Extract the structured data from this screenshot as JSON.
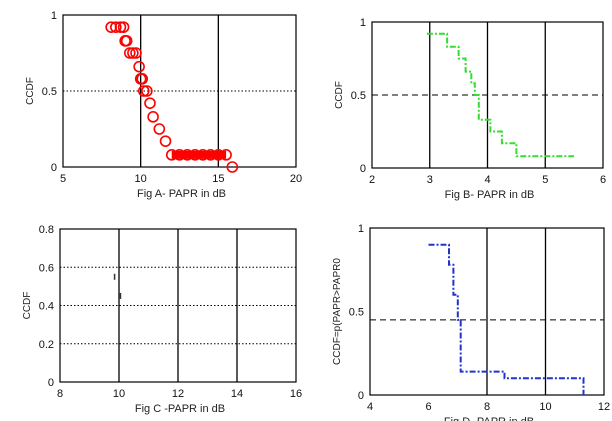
{
  "chart_data": [
    {
      "id": "A",
      "type": "line",
      "xlabel": "Fig A-  PAPR  in dB",
      "ylabel": "CCDF",
      "xlim": [
        5,
        20
      ],
      "ylim": [
        0,
        1
      ],
      "xticks": [
        "5",
        "10",
        "15",
        "20"
      ],
      "yticks": [
        "0",
        "0.5",
        "1"
      ],
      "xtick_values": [
        5,
        10,
        15,
        20
      ],
      "ytick_values": [
        0,
        0.5,
        1
      ],
      "dashed_ref_y": 0.5,
      "dashed_style": "dotted",
      "grid_x": [
        10,
        15
      ],
      "series": [
        {
          "color": "#ff0000",
          "marker": "circle",
          "x": [
            8.1,
            8.4,
            8.7,
            9.1,
            9.3,
            9.5,
            9.7,
            10.0,
            10.2,
            10.4,
            10.6,
            10.8,
            11.2,
            11.6,
            12,
            12.5,
            13,
            13.5,
            14,
            14.5,
            15,
            15.5,
            15.9,
            8.9,
            9.0,
            9.9,
            10.1
          ],
          "y": [
            0.92,
            0.92,
            0.92,
            0.83,
            0.75,
            0.75,
            0.75,
            0.58,
            0.5,
            0.5,
            0.42,
            0.33,
            0.25,
            0.17,
            0.08,
            0.08,
            0.08,
            0.08,
            0.08,
            0.08,
            0.08,
            0.08,
            0.0,
            0.92,
            0.83,
            0.66,
            0.58
          ]
        }
      ]
    },
    {
      "id": "B",
      "type": "line",
      "xlabel": "Fig B-  PAPR  in dB",
      "ylabel": "CCDF",
      "xlim": [
        2,
        6
      ],
      "ylim": [
        0,
        1
      ],
      "xticks": [
        "2",
        "3",
        "4",
        "5",
        "6"
      ],
      "yticks": [
        "0",
        "0.5",
        "1"
      ],
      "xtick_values": [
        2,
        3,
        4,
        5,
        6
      ],
      "ytick_values": [
        0,
        0.5,
        1
      ],
      "dashed_ref_y": 0.5,
      "dashed_style": "dashed",
      "grid_x": [
        3,
        4,
        5
      ],
      "series": [
        {
          "color": "#33dd33",
          "line": "dash-dot",
          "x": [
            2.95,
            3.3,
            3.3,
            3.5,
            3.5,
            3.62,
            3.62,
            3.72,
            3.72,
            3.78,
            3.78,
            3.85,
            3.85,
            4.05,
            4.05,
            4.25,
            4.25,
            4.5,
            4.5,
            5.5
          ],
          "y": [
            0.92,
            0.92,
            0.83,
            0.83,
            0.75,
            0.75,
            0.66,
            0.66,
            0.58,
            0.58,
            0.5,
            0.5,
            0.33,
            0.33,
            0.25,
            0.25,
            0.17,
            0.17,
            0.08,
            0.08
          ]
        }
      ]
    },
    {
      "id": "C",
      "type": "scatter",
      "xlabel": "Fig C -PAPR  in dB",
      "ylabel": "CCDF",
      "xlim": [
        8,
        16
      ],
      "ylim": [
        0,
        0.8
      ],
      "xticks": [
        "8",
        "10",
        "12",
        "14",
        "16"
      ],
      "yticks": [
        "0",
        "0.2",
        "0.4",
        "0.6",
        "0.8"
      ],
      "xtick_values": [
        8,
        10,
        12,
        14,
        16
      ],
      "ytick_values": [
        0,
        0.2,
        0.4,
        0.6,
        0.8
      ],
      "dotted_ref_y": [
        0.2,
        0.4,
        0.6
      ],
      "grid_x": [
        10,
        12,
        14
      ],
      "series": [
        {
          "color": "#333333",
          "marker": "tick",
          "x": [
            9.85,
            10.05
          ],
          "y": [
            0.55,
            0.45
          ]
        }
      ]
    },
    {
      "id": "D",
      "type": "line",
      "xlabel": "Fig D -PAPR  in dB",
      "ylabel": "CCDF=p(PAPR>PAPR0",
      "xlim": [
        4,
        12
      ],
      "ylim": [
        0,
        1
      ],
      "xticks": [
        "4",
        "6",
        "8",
        "10",
        "12"
      ],
      "yticks": [
        "0",
        "0.5",
        "1"
      ],
      "xtick_values": [
        4,
        6,
        8,
        10,
        12
      ],
      "ytick_values": [
        0,
        0.5,
        1
      ],
      "dashed_ref_y": 0.45,
      "dashed_style": "dashed",
      "grid_x": [
        8,
        10
      ],
      "series": [
        {
          "color": "#2233cc",
          "line": "dash-dot",
          "x": [
            6.0,
            6.7,
            6.7,
            6.85,
            6.85,
            7.0,
            7.0,
            7.1,
            7.1,
            8.6,
            8.6,
            11.3,
            11.3
          ],
          "y": [
            0.9,
            0.9,
            0.78,
            0.78,
            0.6,
            0.6,
            0.45,
            0.45,
            0.14,
            0.14,
            0.1,
            0.1,
            0.0
          ]
        }
      ]
    }
  ]
}
